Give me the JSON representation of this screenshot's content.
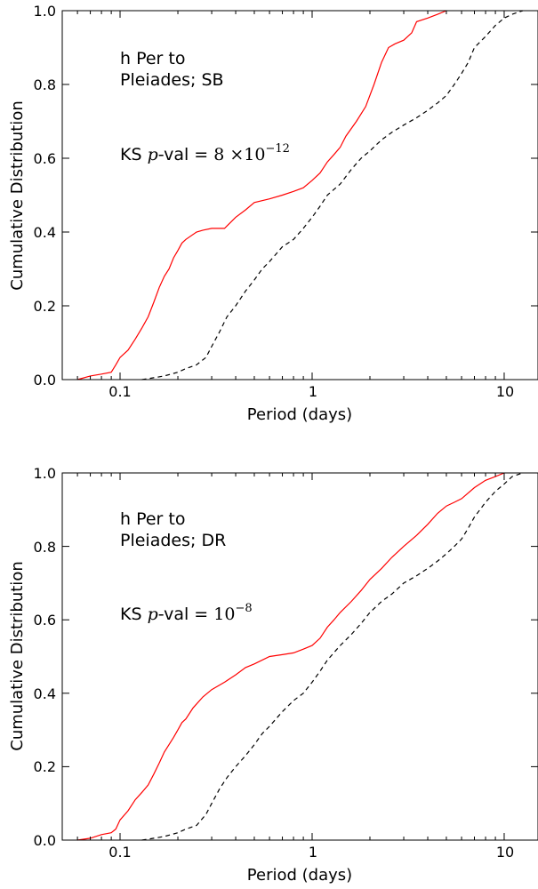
{
  "chart_data": [
    {
      "type": "line",
      "xscale": "log",
      "xlim": [
        0.05,
        15
      ],
      "ylim": [
        0.0,
        1.0
      ],
      "xlabel": "Period (days)",
      "ylabel": "Cumulative Distribution",
      "xticks": [
        0.1,
        1,
        10
      ],
      "xtick_labels": [
        "0.1",
        "1",
        "10"
      ],
      "yticks": [
        0.0,
        0.2,
        0.4,
        0.6,
        0.8,
        1.0
      ],
      "ytick_labels": [
        "0.0",
        "0.2",
        "0.4",
        "0.6",
        "0.8",
        "1.0"
      ],
      "annotation": {
        "line1": "h Per to",
        "line2": "Pleiades; SB",
        "ks_prefix": "KS ",
        "ks_p": "p",
        "ks_mid": "-val = ",
        "ks_value": "8 ×10",
        "ks_exp": "−12"
      },
      "series": [
        {
          "color": "#ff0000",
          "style": "solid",
          "x": [
            0.06,
            0.07,
            0.08,
            0.09,
            0.095,
            0.1,
            0.11,
            0.12,
            0.13,
            0.14,
            0.15,
            0.16,
            0.17,
            0.18,
            0.19,
            0.2,
            0.21,
            0.22,
            0.25,
            0.27,
            0.3,
            0.35,
            0.4,
            0.45,
            0.5,
            0.6,
            0.7,
            0.8,
            0.9,
            1.0,
            1.1,
            1.2,
            1.3,
            1.4,
            1.5,
            1.7,
            1.9,
            2.1,
            2.3,
            2.5,
            2.7,
            3.0,
            3.3,
            3.5,
            4.0,
            4.5,
            5.0
          ],
          "y": [
            0.0,
            0.01,
            0.015,
            0.02,
            0.04,
            0.06,
            0.08,
            0.11,
            0.14,
            0.17,
            0.21,
            0.25,
            0.28,
            0.3,
            0.33,
            0.35,
            0.37,
            0.38,
            0.4,
            0.405,
            0.41,
            0.41,
            0.44,
            0.46,
            0.48,
            0.49,
            0.5,
            0.51,
            0.52,
            0.54,
            0.56,
            0.59,
            0.61,
            0.63,
            0.66,
            0.7,
            0.74,
            0.8,
            0.86,
            0.9,
            0.91,
            0.92,
            0.94,
            0.97,
            0.98,
            0.99,
            1.0
          ]
        },
        {
          "color": "#000000",
          "style": "dashed",
          "x": [
            0.13,
            0.15,
            0.17,
            0.2,
            0.22,
            0.25,
            0.28,
            0.3,
            0.33,
            0.36,
            0.4,
            0.45,
            0.5,
            0.55,
            0.6,
            0.7,
            0.8,
            0.9,
            1.0,
            1.1,
            1.2,
            1.4,
            1.6,
            1.8,
            2.0,
            2.3,
            2.6,
            3.0,
            3.5,
            4.0,
            4.5,
            5.0,
            5.5,
            6.0,
            6.5,
            7.0,
            8.0,
            9.0,
            10.0,
            11.0,
            12.5
          ],
          "y": [
            0.0,
            0.005,
            0.01,
            0.02,
            0.03,
            0.04,
            0.06,
            0.09,
            0.13,
            0.17,
            0.2,
            0.24,
            0.27,
            0.3,
            0.32,
            0.36,
            0.38,
            0.41,
            0.44,
            0.47,
            0.5,
            0.53,
            0.57,
            0.6,
            0.62,
            0.65,
            0.67,
            0.69,
            0.71,
            0.73,
            0.75,
            0.77,
            0.8,
            0.83,
            0.86,
            0.9,
            0.93,
            0.96,
            0.98,
            0.99,
            1.0
          ]
        }
      ]
    },
    {
      "type": "line",
      "xscale": "log",
      "xlim": [
        0.05,
        15
      ],
      "ylim": [
        0.0,
        1.0
      ],
      "xlabel": "Period (days)",
      "ylabel": "Cumulative Distribution",
      "xticks": [
        0.1,
        1,
        10
      ],
      "xtick_labels": [
        "0.1",
        "1",
        "10"
      ],
      "yticks": [
        0.0,
        0.2,
        0.4,
        0.6,
        0.8,
        1.0
      ],
      "ytick_labels": [
        "0.0",
        "0.2",
        "0.4",
        "0.6",
        "0.8",
        "1.0"
      ],
      "annotation": {
        "line1": "h Per to",
        "line2": "Pleiades; DR",
        "ks_prefix": "KS ",
        "ks_p": "p",
        "ks_mid": "-val = ",
        "ks_value": "10",
        "ks_exp": "−8"
      },
      "series": [
        {
          "color": "#ff0000",
          "style": "solid",
          "x": [
            0.06,
            0.07,
            0.08,
            0.09,
            0.095,
            0.1,
            0.11,
            0.12,
            0.13,
            0.14,
            0.15,
            0.16,
            0.17,
            0.18,
            0.19,
            0.2,
            0.21,
            0.22,
            0.24,
            0.27,
            0.3,
            0.35,
            0.4,
            0.45,
            0.5,
            0.6,
            0.7,
            0.8,
            0.9,
            1.0,
            1.1,
            1.2,
            1.3,
            1.4,
            1.6,
            1.8,
            2.0,
            2.3,
            2.6,
            3.0,
            3.5,
            4.0,
            4.5,
            5.0,
            5.5,
            6.0,
            7.0,
            8.0,
            9.0,
            10.0
          ],
          "y": [
            0.0,
            0.005,
            0.015,
            0.02,
            0.03,
            0.055,
            0.08,
            0.11,
            0.13,
            0.15,
            0.18,
            0.21,
            0.24,
            0.26,
            0.28,
            0.3,
            0.32,
            0.33,
            0.36,
            0.39,
            0.41,
            0.43,
            0.45,
            0.47,
            0.48,
            0.5,
            0.505,
            0.51,
            0.52,
            0.53,
            0.55,
            0.58,
            0.6,
            0.62,
            0.65,
            0.68,
            0.71,
            0.74,
            0.77,
            0.8,
            0.83,
            0.86,
            0.89,
            0.91,
            0.92,
            0.93,
            0.96,
            0.98,
            0.99,
            1.0
          ]
        },
        {
          "color": "#000000",
          "style": "dashed",
          "x": [
            0.13,
            0.15,
            0.17,
            0.2,
            0.22,
            0.25,
            0.28,
            0.3,
            0.33,
            0.36,
            0.4,
            0.45,
            0.5,
            0.55,
            0.6,
            0.7,
            0.8,
            0.9,
            1.0,
            1.1,
            1.2,
            1.4,
            1.6,
            1.8,
            2.0,
            2.3,
            2.6,
            3.0,
            3.5,
            4.0,
            4.5,
            5.0,
            5.5,
            6.0,
            6.5,
            7.0,
            8.0,
            9.0,
            10.0,
            11.0,
            12.5
          ],
          "y": [
            0.0,
            0.005,
            0.01,
            0.02,
            0.03,
            0.04,
            0.07,
            0.1,
            0.14,
            0.17,
            0.2,
            0.23,
            0.26,
            0.29,
            0.31,
            0.35,
            0.38,
            0.4,
            0.43,
            0.46,
            0.49,
            0.53,
            0.56,
            0.59,
            0.62,
            0.65,
            0.67,
            0.7,
            0.72,
            0.74,
            0.76,
            0.78,
            0.8,
            0.82,
            0.85,
            0.88,
            0.92,
            0.95,
            0.97,
            0.99,
            1.0
          ]
        }
      ]
    }
  ]
}
